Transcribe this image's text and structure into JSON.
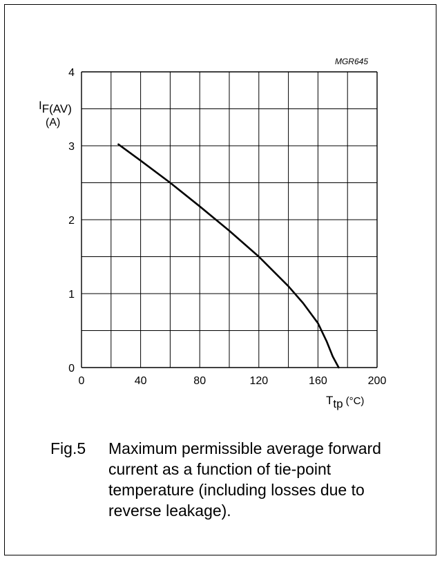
{
  "chart_data": {
    "type": "line",
    "code_label": "MGR645",
    "ylabel_main": "I",
    "ylabel_sub": "F(AV)",
    "yunit": "(A)",
    "xlabel_main": "T",
    "xlabel_sub": "tp",
    "xunit": "(°C)",
    "xlim": [
      0,
      200
    ],
    "ylim": [
      0,
      4
    ],
    "grid": true,
    "x_ticks": [
      0,
      40,
      80,
      120,
      160,
      200
    ],
    "y_ticks": [
      0,
      1,
      2,
      3,
      4
    ],
    "x_tick_labels": [
      "0",
      "40",
      "80",
      "120",
      "160",
      "200"
    ],
    "y_tick_labels": [
      "0",
      "1",
      "2",
      "3",
      "4"
    ],
    "series": [
      {
        "x": [
          25,
          40,
          60,
          80,
          100,
          120,
          140,
          150,
          160,
          166,
          170,
          174
        ],
        "y": [
          3.02,
          2.8,
          2.5,
          2.18,
          1.85,
          1.5,
          1.1,
          0.87,
          0.6,
          0.35,
          0.15,
          0.0
        ]
      }
    ]
  },
  "caption": {
    "fig_no": "Fig.5",
    "lines": [
      "Maximum permissible average forward",
      "current as a function of tie-point",
      "temperature (including losses due to",
      "reverse leakage)."
    ]
  }
}
